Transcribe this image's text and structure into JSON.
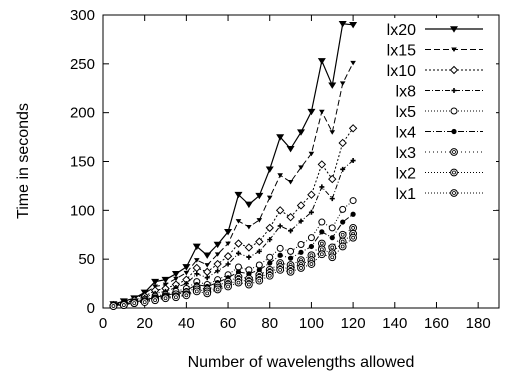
{
  "chart_data": {
    "type": "line",
    "title": "",
    "xlabel": "Number of wavelengths allowed",
    "ylabel": "Time in seconds",
    "xlim": [
      0,
      190
    ],
    "ylim": [
      0,
      300
    ],
    "xticks": [
      0,
      20,
      40,
      60,
      80,
      100,
      120,
      140,
      160,
      180
    ],
    "yticks": [
      0,
      50,
      100,
      150,
      200,
      250,
      300
    ],
    "grid": false,
    "legend_position": "top-right",
    "x": [
      5,
      10,
      15,
      20,
      25,
      30,
      35,
      40,
      45,
      50,
      55,
      60,
      65,
      70,
      75,
      80,
      85,
      90,
      95,
      100,
      105,
      110,
      115,
      120
    ],
    "series": [
      {
        "name": "lx20",
        "marker": "triangle-down",
        "dash": "",
        "values": [
          4,
          7,
          10,
          16,
          27,
          29,
          35,
          42,
          63,
          54,
          65,
          78,
          116,
          106,
          115,
          142,
          175,
          163,
          180,
          201,
          253,
          228,
          291,
          290
        ]
      },
      {
        "name": "lx15",
        "marker": "triangle-down-small",
        "dash": "6,3",
        "values": [
          3,
          6,
          9,
          15,
          22,
          24,
          30,
          36,
          49,
          44,
          55,
          66,
          89,
          83,
          90,
          113,
          136,
          129,
          144,
          158,
          201,
          180,
          230,
          251
        ]
      },
      {
        "name": "lx10",
        "marker": "diamond",
        "dash": "2,2",
        "values": [
          3,
          5,
          8,
          12,
          18,
          20,
          24,
          29,
          41,
          37,
          45,
          53,
          66,
          62,
          68,
          82,
          100,
          93,
          105,
          116,
          147,
          132,
          169,
          184
        ]
      },
      {
        "name": "lx8",
        "marker": "plus",
        "dash": "5,2,1,2",
        "values": [
          3,
          5,
          7,
          11,
          15,
          17,
          21,
          25,
          35,
          31,
          38,
          45,
          56,
          52,
          58,
          70,
          84,
          79,
          89,
          98,
          124,
          112,
          142,
          151
        ]
      },
      {
        "name": "lx5",
        "marker": "circle-open",
        "dash": "1,2",
        "values": [
          2,
          4,
          6,
          9,
          12,
          14,
          17,
          20,
          27,
          24,
          29,
          34,
          42,
          39,
          44,
          52,
          61,
          58,
          65,
          72,
          88,
          82,
          101,
          110
        ]
      },
      {
        "name": "lx4",
        "marker": "circle-filled",
        "dash": "6,2,1,2",
        "values": [
          2,
          4,
          6,
          8,
          11,
          13,
          15,
          18,
          24,
          22,
          26,
          31,
          37,
          35,
          39,
          46,
          54,
          51,
          57,
          63,
          78,
          72,
          88,
          96
        ]
      },
      {
        "name": "lx3",
        "marker": "circle-double",
        "dash": "1,3",
        "values": [
          2,
          4,
          5,
          7,
          10,
          12,
          14,
          16,
          21,
          19,
          23,
          27,
          32,
          30,
          34,
          39,
          46,
          44,
          49,
          54,
          66,
          62,
          75,
          82
        ]
      },
      {
        "name": "lx2",
        "marker": "circle-double",
        "dash": "1,2",
        "values": [
          2,
          3,
          5,
          7,
          9,
          11,
          12,
          14,
          19,
          17,
          21,
          24,
          29,
          27,
          31,
          36,
          42,
          40,
          45,
          49,
          60,
          56,
          68,
          76
        ]
      },
      {
        "name": "lx1",
        "marker": "circle-double",
        "dash": "1,2",
        "values": [
          2,
          3,
          5,
          6,
          8,
          10,
          11,
          13,
          17,
          15,
          19,
          22,
          26,
          24,
          28,
          33,
          39,
          37,
          41,
          45,
          55,
          52,
          63,
          72
        ]
      }
    ]
  },
  "style": {
    "line_color": "#000000",
    "background": "#ffffff"
  }
}
